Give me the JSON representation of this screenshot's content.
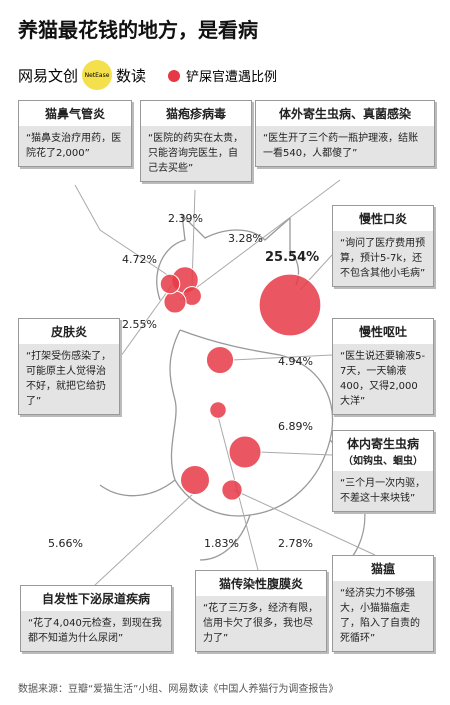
{
  "header": {
    "title": "养猫最花钱的地方，是看病",
    "brand": "网易文创",
    "brand_badge": "NetEase",
    "brand_sub": "数读",
    "legend": "铲屎官遭遇比例"
  },
  "items": [
    {
      "name": "猫鼻气管炎",
      "quote": "“猫鼻支治疗用药，医院花了2,000”",
      "value": 4.72,
      "value_label": "4.72%"
    },
    {
      "name": "猫疱疹病毒",
      "quote": "“医院的药实在太贵，只能咨询完医生，自己去买些”",
      "value": 2.39,
      "value_label": "2.39%"
    },
    {
      "name": "体外寄生虫病、真菌感染",
      "quote": "“医生开了三个药一瓶护理液，结账一看540，人都傻了”",
      "value": 3.28,
      "value_label": "3.28%"
    },
    {
      "name": "慢性口炎",
      "quote": "“询问了医疗费用预算，预计5-7k，还不包含其他小毛病”",
      "value": 25.54,
      "value_label": "25.54%"
    },
    {
      "name": "皮肤炎",
      "quote": "“打架受伤感染了，可能原主人觉得治不好，就把它给扔了”",
      "value": 2.55,
      "value_label": "2.55%"
    },
    {
      "name": "慢性呕吐",
      "quote": "“医生说还要输液5-7天，一天输液400，又得2,000大洋”",
      "value": 4.94,
      "value_label": "4.94%"
    },
    {
      "name": "体内寄生虫病",
      "subtitle": "（如钩虫、蛔虫）",
      "quote": "“三个月一次内驱，不差这十来块钱”",
      "value": 6.89,
      "value_label": "6.89%"
    },
    {
      "name": "自发性下泌尿道疾病",
      "quote": "“花了4,040元检查，到现在我都不知道为什么尿闭”",
      "value": 5.66,
      "value_label": "5.66%"
    },
    {
      "name": "猫传染性腹膜炎",
      "quote": "“花了三万多，经济有限，信用卡欠了很多，我也尽力了”",
      "value": 1.83,
      "value_label": "1.83%"
    },
    {
      "name": "猫瘟",
      "quote": "“经济实力不够强大，小猫猫瘟走了，陷入了自责的死循环”",
      "value": 2.78,
      "value_label": "2.78%"
    }
  ],
  "source": "数据来源：豆瓣“爱猫生活”小组、网易数读《中国人养猫行为调查报告》"
}
